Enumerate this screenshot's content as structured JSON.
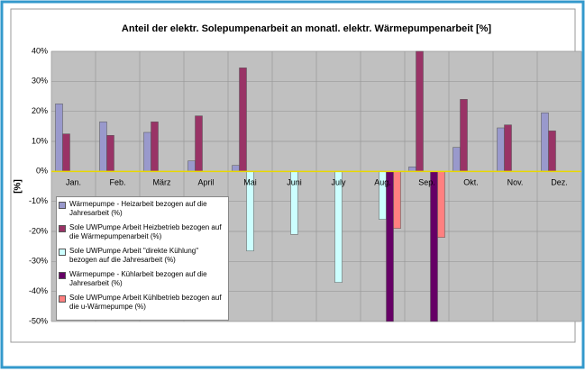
{
  "chart_data": {
    "type": "bar",
    "title": "Anteil der elektr. Solepumpenarbeit an monatl. elektr. Wärmepumpenarbeit  [%]",
    "y_label": "[%]",
    "categories": [
      "Jan.",
      "Feb.",
      "März",
      "April",
      "Mai",
      "Juni",
      "July",
      "Aug.",
      "Sep.",
      "Okt.",
      "Nov.",
      "Dez."
    ],
    "series": [
      {
        "name": "Wärmepumpe - Heizarbeit bezogen auf die Jahresarbeit (%)",
        "color": "#9999cc",
        "values": [
          22.5,
          16.5,
          13,
          3.5,
          2,
          null,
          null,
          null,
          1.5,
          8,
          14.5,
          19.5
        ]
      },
      {
        "name": "Sole UWPumpe Arbeit Heizbetrieb bezogen auf die Wärmepumpenarbeit (%)",
        "color": "#993366",
        "values": [
          12.5,
          12,
          16.5,
          18.5,
          34.5,
          null,
          null,
          null,
          40,
          24,
          15.5,
          13.5
        ]
      },
      {
        "name": "Sole UWPumpe Arbeit \"direkte Kühlung\" bezogen auf die Jahresarbeit (%)",
        "color": "#ccffff",
        "values": [
          null,
          null,
          null,
          null,
          -26.5,
          -21,
          -37,
          -16,
          null,
          null,
          null,
          null
        ]
      },
      {
        "name": "Wärmepumpe - Kühlarbeit bezogen auf die Jahresarbeit (%)",
        "color": "#660066",
        "values": [
          null,
          null,
          null,
          null,
          null,
          null,
          null,
          -50,
          -50,
          null,
          null,
          null
        ]
      },
      {
        "name": "Sole UWPumpe Arbeit Kühlbetrieb bezogen auf die  u-Wärmepumpe (%)",
        "color": "#ff8080",
        "values": [
          null,
          null,
          null,
          null,
          null,
          null,
          null,
          -19,
          -22,
          null,
          null,
          null
        ]
      }
    ],
    "ylim": [
      -50,
      40
    ],
    "yticks": [
      {
        "value": 40,
        "label": "40%"
      },
      {
        "value": 30,
        "label": "30%"
      },
      {
        "value": 20,
        "label": "20%"
      },
      {
        "value": 10,
        "label": "10%"
      },
      {
        "value": 0,
        "label": "0%"
      },
      {
        "value": -10,
        "label": "-10%"
      },
      {
        "value": -20,
        "label": "-20%"
      },
      {
        "value": -30,
        "label": "-30%"
      },
      {
        "value": -40,
        "label": "-40%"
      },
      {
        "value": -50,
        "label": "-50%"
      }
    ],
    "grid": true
  }
}
